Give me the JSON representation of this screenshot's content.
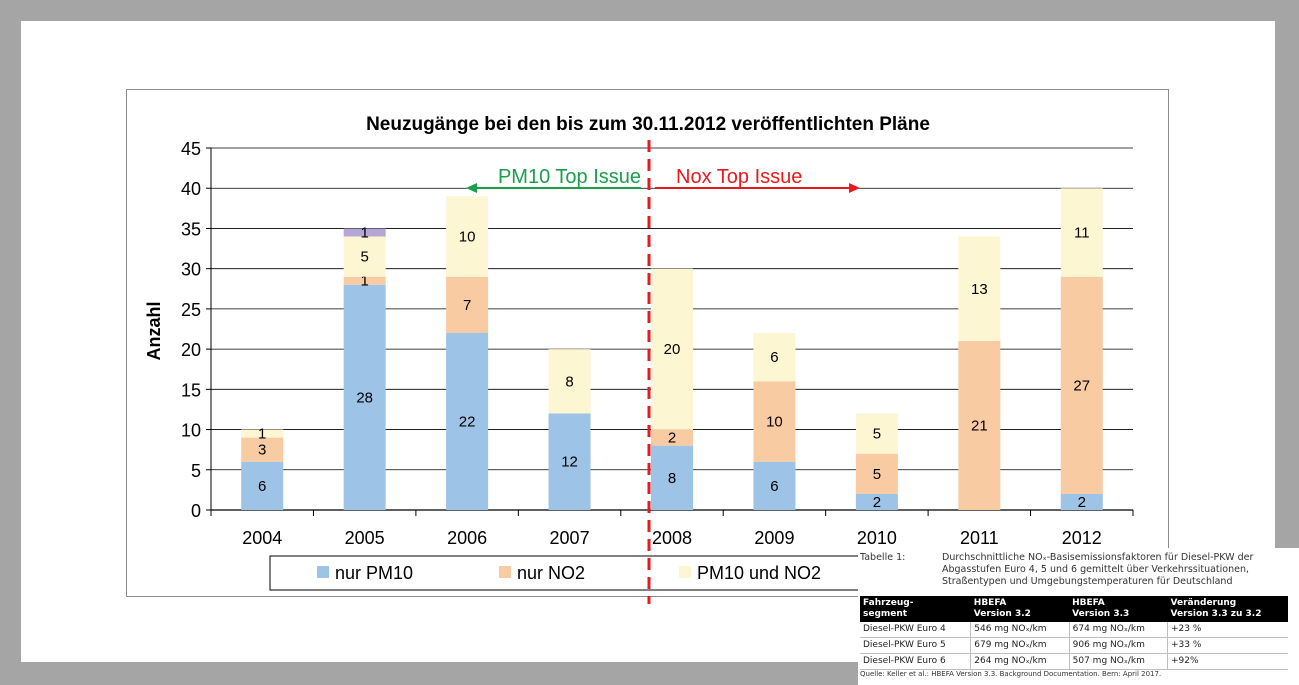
{
  "chart_data": {
    "type": "bar",
    "stacked": true,
    "title": "Neuzugänge bei den bis zum 30.11.2012 veröffentlichten Pläne",
    "ylabel": "Anzahl",
    "xlabel": "",
    "ylim": [
      0,
      45
    ],
    "yticks": [
      0,
      5,
      10,
      15,
      20,
      25,
      30,
      35,
      40,
      45
    ],
    "grid": true,
    "legend_position": "bottom",
    "categories": [
      "2004",
      "2005",
      "2006",
      "2007",
      "2008",
      "2009",
      "2010",
      "2011",
      "2012"
    ],
    "series": [
      {
        "name": "nur PM10",
        "color": "#9dc3e6",
        "values": [
          6,
          28,
          22,
          12,
          8,
          6,
          2,
          0,
          2
        ]
      },
      {
        "name": "nur NO2",
        "color": "#f8cba3",
        "values": [
          3,
          1,
          7,
          0,
          2,
          10,
          5,
          21,
          27
        ]
      },
      {
        "name": "PM10 und NO2",
        "color": "#fdf6d2",
        "values": [
          1,
          5,
          10,
          8,
          20,
          6,
          5,
          13,
          11
        ]
      },
      {
        "color": "#b4a7d6",
        "values": [
          0,
          1,
          0,
          0,
          0,
          0,
          0,
          0,
          0
        ]
      }
    ],
    "annotations": {
      "divider_after_category": "2007",
      "left_label": "PM10 Top Issue",
      "left_color": "#1aa04b",
      "right_label": "Nox Top Issue",
      "right_color": "#e8191f"
    }
  },
  "table_inset": {
    "label": "Tabelle 1:",
    "caption": "Durchschnittliche NOₓ-Basisemissionsfaktoren für Diesel-PKW der Abgasstufen Euro 4, 5 und 6 gemittelt über Verkehrssituationen, Straßentypen und Umgebungstemperaturen für Deutschland",
    "headers": [
      "Fahrzeug-\nsegment",
      "HBEFA\nVersion 3.2",
      "HBEFA\nVersion 3.3",
      "Veränderung\nVersion 3.3 zu 3.2"
    ],
    "rows": [
      [
        "Diesel-PKW Euro 4",
        "546 mg NOₓ/km",
        "674 mg NOₓ/km",
        "+23 %"
      ],
      [
        "Diesel-PKW Euro 5",
        "679 mg NOₓ/km",
        "906 mg NOₓ/km",
        "+33 %"
      ],
      [
        "Diesel-PKW Euro 6",
        "264 mg NOₓ/km",
        "507 mg NOₓ/km",
        "+92%"
      ]
    ],
    "source": "Quelle: Keller et al.: HBEFA Version 3.3. Background Documentation. Bern: April 2017."
  }
}
